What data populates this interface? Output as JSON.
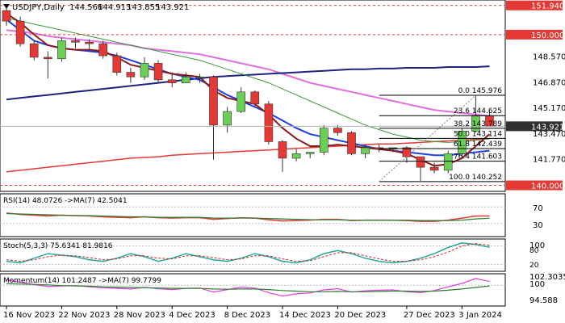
{
  "main": {
    "symbol": "USDJPY,Daily",
    "ohlc": [
      "144.566",
      "144.913",
      "143.855",
      "143.921"
    ],
    "price_labels": [
      {
        "text": "151.940",
        "value": 151.94,
        "kind": "red"
      },
      {
        "text": "150.000",
        "value": 150.0,
        "kind": "red"
      },
      {
        "text": "148.570",
        "value": 148.57,
        "kind": "plain"
      },
      {
        "text": "146.870",
        "value": 146.87,
        "kind": "plain"
      },
      {
        "text": "145.170",
        "value": 145.17,
        "kind": "plain"
      },
      {
        "text": "143.921",
        "value": 143.921,
        "kind": "current"
      },
      {
        "text": "143.470",
        "value": 143.47,
        "kind": "plain"
      },
      {
        "text": "141.770",
        "value": 141.77,
        "kind": "plain"
      },
      {
        "text": "140.000",
        "value": 140.0,
        "kind": "red"
      }
    ],
    "fib_levels": [
      {
        "text": "0.0 145.976",
        "value": 145.976
      },
      {
        "text": "23.6 144.625",
        "value": 144.625
      },
      {
        "text": "38.2 143.789",
        "value": 143.789
      },
      {
        "text": "50.0 143.114",
        "value": 143.114
      },
      {
        "text": "61.8 142.439",
        "value": 142.439
      },
      {
        "text": "76.4 141.603",
        "value": 141.603
      },
      {
        "text": "100.0 140.252",
        "value": 140.252
      }
    ]
  },
  "indicators": {
    "rsi": {
      "title": "RSI(14) 48.0726 ->MA(7) 42.5041",
      "levels": [
        "70",
        "30"
      ]
    },
    "stoch": {
      "title": "Stoch(5,3,3) 75.6341 81.9816",
      "levels": [
        "100",
        "80",
        "20"
      ]
    },
    "momentum": {
      "title": "Momentum(14) 101.2487 ->MA(7) 99.7799",
      "levels": [
        "102.3035",
        "100",
        "94.588"
      ]
    }
  },
  "x_axis_labels": [
    "16 Nov 2023",
    "22 Nov 2023",
    "28 Nov 2023",
    "4 Dec 2023",
    "8 Dec 2023",
    "14 Dec 2023",
    "20 Dec 2023",
    "27 Dec 2023",
    "3 Jan 2024"
  ],
  "colors": {
    "up": "#6ccf55",
    "down": "#e53935",
    "pink": "#e070e0",
    "navy": "#1a237e",
    "blue": "#1e40e0",
    "red_ma": "#e53935",
    "green_ma": "#3a9a3a",
    "brown_ma": "#8b1a1a",
    "current_bg": "#2f2f2f"
  },
  "chart_data": [
    {
      "type": "candlestick",
      "title": "USDJPY,Daily",
      "ylim": [
        139.6,
        152.3
      ],
      "x": [
        "16 Nov 2023",
        "17 Nov 2023",
        "20 Nov 2023",
        "21 Nov 2023",
        "22 Nov 2023",
        "23 Nov 2023",
        "24 Nov 2023",
        "27 Nov 2023",
        "28 Nov 2023",
        "29 Nov 2023",
        "30 Nov 2023",
        "1 Dec 2023",
        "4 Dec 2023",
        "5 Dec 2023",
        "6 Dec 2023",
        "7 Dec 2023",
        "8 Dec 2023",
        "11 Dec 2023",
        "12 Dec 2023",
        "13 Dec 2023",
        "14 Dec 2023",
        "15 Dec 2023",
        "18 Dec 2023",
        "19 Dec 2023",
        "20 Dec 2023",
        "21 Dec 2023",
        "22 Dec 2023",
        "25 Dec 2023",
        "26 Dec 2023",
        "27 Dec 2023",
        "28 Dec 2023",
        "29 Dec 2023",
        "2 Jan 2024",
        "3 Jan 2024",
        "4 Jan 2024",
        "5 Jan 2024"
      ],
      "candles": [
        {
          "o": 151.6,
          "h": 151.9,
          "l": 150.6,
          "c": 150.9
        },
        {
          "o": 150.9,
          "h": 151.2,
          "l": 149.2,
          "c": 149.4
        },
        {
          "o": 149.4,
          "h": 149.6,
          "l": 148.3,
          "c": 148.5
        },
        {
          "o": 148.5,
          "h": 148.9,
          "l": 147.1,
          "c": 148.4
        },
        {
          "o": 148.4,
          "h": 149.8,
          "l": 148.2,
          "c": 149.6
        },
        {
          "o": 149.6,
          "h": 149.8,
          "l": 149.1,
          "c": 149.5
        },
        {
          "o": 149.5,
          "h": 149.7,
          "l": 149.0,
          "c": 149.4
        },
        {
          "o": 149.4,
          "h": 149.6,
          "l": 148.4,
          "c": 148.6
        },
        {
          "o": 148.6,
          "h": 148.8,
          "l": 147.3,
          "c": 147.5
        },
        {
          "o": 147.5,
          "h": 147.8,
          "l": 146.8,
          "c": 147.2
        },
        {
          "o": 147.2,
          "h": 148.5,
          "l": 147.0,
          "c": 148.1
        },
        {
          "o": 148.1,
          "h": 148.3,
          "l": 146.8,
          "c": 147.0
        },
        {
          "o": 147.0,
          "h": 147.5,
          "l": 146.5,
          "c": 146.8
        },
        {
          "o": 146.8,
          "h": 147.5,
          "l": 146.8,
          "c": 147.2
        },
        {
          "o": 147.2,
          "h": 147.4,
          "l": 146.8,
          "c": 147.2
        },
        {
          "o": 147.2,
          "h": 147.3,
          "l": 141.7,
          "c": 144.0
        },
        {
          "o": 144.0,
          "h": 145.2,
          "l": 143.5,
          "c": 144.9
        },
        {
          "o": 144.9,
          "h": 146.5,
          "l": 144.8,
          "c": 146.2
        },
        {
          "o": 146.2,
          "h": 146.3,
          "l": 145.2,
          "c": 145.4
        },
        {
          "o": 145.4,
          "h": 145.6,
          "l": 142.7,
          "c": 142.9
        },
        {
          "o": 142.9,
          "h": 143.0,
          "l": 140.9,
          "c": 141.8
        },
        {
          "o": 141.8,
          "h": 142.4,
          "l": 141.6,
          "c": 142.1
        },
        {
          "o": 142.1,
          "h": 142.2,
          "l": 141.8,
          "c": 142.2
        },
        {
          "o": 142.2,
          "h": 144.0,
          "l": 142.0,
          "c": 143.8
        },
        {
          "o": 143.8,
          "h": 144.0,
          "l": 143.3,
          "c": 143.5
        },
        {
          "o": 143.5,
          "h": 143.6,
          "l": 142.0,
          "c": 142.1
        },
        {
          "o": 142.1,
          "h": 142.7,
          "l": 141.8,
          "c": 142.5
        },
        {
          "o": 142.5,
          "h": 142.7,
          "l": 142.2,
          "c": 142.4
        },
        {
          "o": 142.4,
          "h": 142.5,
          "l": 142.2,
          "c": 142.5
        },
        {
          "o": 142.5,
          "h": 142.6,
          "l": 141.5,
          "c": 141.9
        },
        {
          "o": 141.9,
          "h": 141.9,
          "l": 140.3,
          "c": 141.2
        },
        {
          "o": 141.2,
          "h": 141.5,
          "l": 140.8,
          "c": 141.0
        },
        {
          "o": 141.0,
          "h": 142.3,
          "l": 140.8,
          "c": 142.1
        },
        {
          "o": 142.1,
          "h": 143.8,
          "l": 141.9,
          "c": 143.6
        },
        {
          "o": 143.6,
          "h": 146.0,
          "l": 143.5,
          "c": 144.6
        },
        {
          "o": 144.6,
          "h": 144.9,
          "l": 143.9,
          "c": 143.9
        }
      ],
      "moving_averages": [
        {
          "color": "pink",
          "values": [
            150.3,
            150.2,
            150.1,
            149.9,
            149.8,
            149.7,
            149.6,
            149.5,
            149.4,
            149.3,
            149.1,
            149.0,
            148.9,
            148.8,
            148.7,
            148.5,
            148.3,
            148.1,
            147.9,
            147.7,
            147.4,
            147.1,
            146.8,
            146.6,
            146.4,
            146.2,
            146.0,
            145.8,
            145.6,
            145.4,
            145.2,
            145.0,
            144.9,
            144.8,
            144.7,
            144.6
          ]
        },
        {
          "color": "navy",
          "values": [
            145.7,
            145.8,
            145.9,
            146.0,
            146.1,
            146.2,
            146.3,
            146.4,
            146.5,
            146.6,
            146.7,
            146.8,
            146.9,
            147.0,
            147.1,
            147.2,
            147.25,
            147.3,
            147.35,
            147.4,
            147.45,
            147.5,
            147.55,
            147.6,
            147.65,
            147.7,
            147.7,
            147.75,
            147.75,
            147.8,
            147.8,
            147.8,
            147.85,
            147.85,
            147.85,
            147.9
          ]
        },
        {
          "color": "red_ma",
          "values": [
            140.9,
            141.0,
            141.1,
            141.2,
            141.3,
            141.4,
            141.5,
            141.6,
            141.7,
            141.8,
            141.85,
            141.9,
            142.0,
            142.05,
            142.1,
            142.15,
            142.2,
            142.25,
            142.3,
            142.35,
            142.4,
            142.45,
            142.5,
            142.55,
            142.6,
            142.65,
            142.7,
            142.75,
            142.75,
            142.8,
            142.85,
            142.9,
            142.95,
            143.0,
            143.05,
            143.1
          ]
        },
        {
          "color": "green_ma",
          "values": [
            151.1,
            150.9,
            150.7,
            150.5,
            150.3,
            150.1,
            149.9,
            149.7,
            149.5,
            149.3,
            149.1,
            148.9,
            148.7,
            148.5,
            148.3,
            148.0,
            147.7,
            147.4,
            147.1,
            146.8,
            146.4,
            146.0,
            145.6,
            145.2,
            144.8,
            144.4,
            144.0,
            143.7,
            143.4,
            143.2,
            143.0,
            142.9,
            142.85,
            142.9,
            143.0,
            143.1
          ]
        },
        {
          "color": "blue",
          "values": [
            151.0,
            150.3,
            149.6,
            149.3,
            149.1,
            149.0,
            148.9,
            148.8,
            148.6,
            148.3,
            148.0,
            147.7,
            147.4,
            147.2,
            147.0,
            146.5,
            146.0,
            145.6,
            145.2,
            144.8,
            144.3,
            143.8,
            143.4,
            143.2,
            143.0,
            142.8,
            142.6,
            142.4,
            142.3,
            142.2,
            142.1,
            142.0,
            142.0,
            142.1,
            142.2,
            142.3
          ]
        },
        {
          "color": "brown_ma",
          "values": [
            151.4,
            150.8,
            150.0,
            149.3,
            149.1,
            149.0,
            149.0,
            148.9,
            148.5,
            148.0,
            147.8,
            147.6,
            147.4,
            147.3,
            147.2,
            146.3,
            145.8,
            145.6,
            145.4,
            144.7,
            143.8,
            143.1,
            142.6,
            142.6,
            142.7,
            142.6,
            142.5,
            142.4,
            142.3,
            142.1,
            141.7,
            141.3,
            141.4,
            141.8,
            142.6,
            143.4
          ]
        }
      ]
    },
    {
      "type": "line",
      "title": "RSI(14) 48.0726 ->MA(7) 42.5041",
      "ylim": [
        0,
        100
      ],
      "series": [
        {
          "name": "RSI(14)",
          "values": [
            55,
            52,
            50,
            48,
            50,
            49,
            48,
            46,
            45,
            44,
            46,
            44,
            43,
            44,
            44,
            40,
            42,
            44,
            43,
            39,
            36,
            37,
            38,
            40,
            40,
            37,
            38,
            38,
            38,
            37,
            35,
            35,
            38,
            43,
            48,
            48
          ]
        },
        {
          "name": "MA(7)",
          "values": [
            54,
            53,
            52,
            51,
            50,
            49,
            49,
            48,
            47,
            46,
            46,
            45,
            45,
            45,
            45,
            43,
            43,
            43,
            43,
            42,
            41,
            40,
            39,
            39,
            39,
            38,
            38,
            38,
            38,
            38,
            37,
            37,
            37,
            38,
            41,
            42.5
          ]
        }
      ]
    },
    {
      "type": "line",
      "title": "Stoch(5,3,3) 75.6341 81.9816",
      "ylim": [
        0,
        100
      ],
      "series": [
        {
          "name": "Stoch(5,3,3)",
          "values": [
            30,
            25,
            40,
            55,
            50,
            45,
            35,
            30,
            40,
            55,
            45,
            30,
            40,
            55,
            45,
            35,
            30,
            40,
            55,
            45,
            30,
            25,
            35,
            55,
            65,
            55,
            40,
            30,
            25,
            30,
            40,
            55,
            75,
            90,
            85,
            75.6
          ]
        },
        {
          "name": "Signal",
          "values": [
            35,
            30,
            35,
            45,
            50,
            48,
            42,
            35,
            38,
            48,
            48,
            40,
            38,
            48,
            48,
            42,
            35,
            38,
            48,
            48,
            38,
            30,
            32,
            45,
            58,
            58,
            48,
            38,
            30,
            30,
            35,
            45,
            60,
            80,
            88,
            82
          ]
        }
      ]
    },
    {
      "type": "line",
      "title": "Momentum(14) 101.2487 ->MA(7) 99.7799",
      "ylim": [
        93.5,
        103.5
      ],
      "series": [
        {
          "name": "Momentum(14)",
          "values": [
            101.8,
            101.0,
            100.2,
            99.6,
            99.8,
            99.9,
            99.5,
            99.2,
            99.0,
            98.8,
            99.3,
            98.9,
            98.6,
            99.0,
            99.1,
            97.8,
            98.6,
            99.4,
            99.1,
            97.6,
            96.5,
            97.2,
            97.5,
            98.5,
            98.9,
            97.8,
            98.2,
            98.4,
            98.5,
            97.9,
            97.6,
            98.3,
            99.5,
            100.6,
            102.2,
            101.25
          ]
        },
        {
          "name": "MA(7)",
          "values": [
            100.5,
            100.4,
            100.3,
            100.1,
            99.9,
            99.8,
            99.7,
            99.5,
            99.4,
            99.3,
            99.2,
            99.1,
            99.0,
            99.0,
            99.0,
            98.8,
            98.7,
            98.8,
            98.8,
            98.6,
            98.3,
            98.1,
            97.9,
            97.9,
            98.0,
            97.9,
            97.9,
            98.0,
            98.1,
            98.1,
            98.0,
            98.1,
            98.4,
            98.8,
            99.3,
            99.78
          ]
        }
      ]
    }
  ]
}
